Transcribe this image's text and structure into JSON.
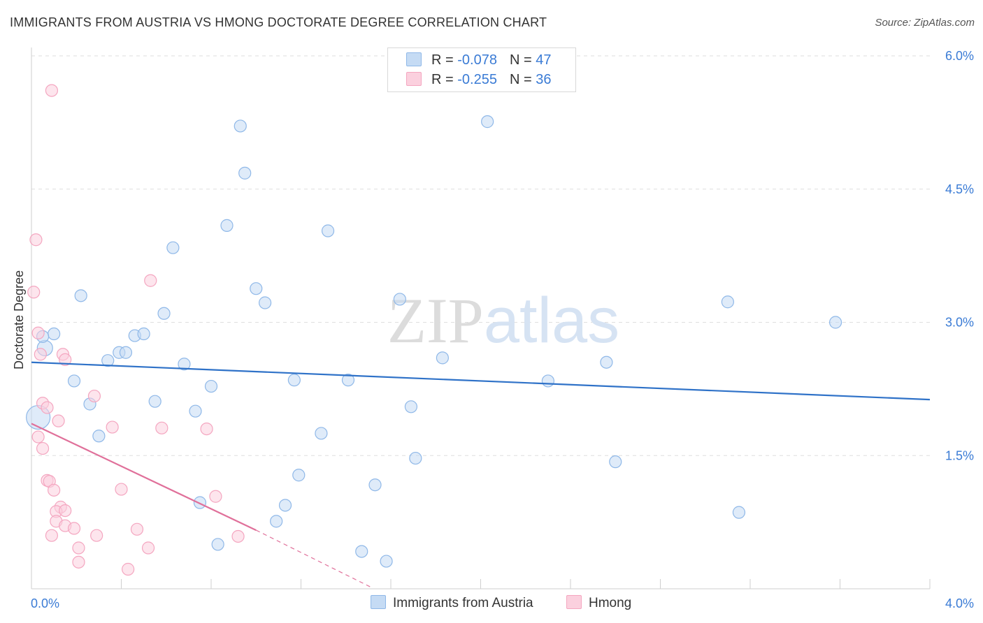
{
  "chart_data": {
    "type": "scatter",
    "title": "IMMIGRANTS FROM AUSTRIA VS HMONG DOCTORATE DEGREE CORRELATION CHART",
    "source": "Source: ZipAtlas.com",
    "ylabel": "Doctorate Degree",
    "xlabel": "",
    "xlim": [
      0,
      4.0
    ],
    "ylim": [
      0,
      6.0
    ],
    "x_tick_labels": {
      "left": "0.0%",
      "right": "4.0%"
    },
    "y_ticks": [
      {
        "value": 1.5,
        "label": "1.5%"
      },
      {
        "value": 3.0,
        "label": "3.0%"
      },
      {
        "value": 4.5,
        "label": "4.5%"
      },
      {
        "value": 6.0,
        "label": "6.0%"
      }
    ],
    "grid": true,
    "watermark": "ZIPatlas",
    "legend": [
      {
        "series": "Immigrants from Austria",
        "r_label": "R = ",
        "r_value": "-0.078",
        "n_label": "N = ",
        "n_value": "47"
      },
      {
        "series": "Hmong",
        "r_label": "R = ",
        "r_value": "-0.255",
        "n_label": "N = ",
        "n_value": "36"
      }
    ],
    "series": [
      {
        "name": "Immigrants from Austria",
        "color": "#8fb8e8",
        "line_color": "#2f72c8",
        "trend": {
          "x0": 0.0,
          "y0": 2.55,
          "x1": 4.0,
          "y1": 2.13
        },
        "points": [
          [
            0.03,
            1.93
          ],
          [
            0.06,
            2.71
          ],
          [
            0.1,
            2.87
          ],
          [
            0.19,
            2.34
          ],
          [
            0.22,
            3.3
          ],
          [
            0.26,
            2.08
          ],
          [
            0.3,
            1.72
          ],
          [
            0.34,
            2.57
          ],
          [
            0.39,
            2.66
          ],
          [
            0.42,
            2.66
          ],
          [
            0.46,
            2.85
          ],
          [
            0.5,
            2.87
          ],
          [
            0.55,
            2.11
          ],
          [
            0.59,
            3.1
          ],
          [
            0.63,
            3.84
          ],
          [
            0.68,
            2.53
          ],
          [
            0.73,
            2.0
          ],
          [
            0.75,
            0.97
          ],
          [
            0.8,
            2.28
          ],
          [
            0.83,
            0.5
          ],
          [
            0.87,
            4.09
          ],
          [
            0.93,
            5.21
          ],
          [
            0.95,
            4.68
          ],
          [
            1.0,
            3.38
          ],
          [
            1.04,
            3.22
          ],
          [
            1.09,
            0.76
          ],
          [
            1.13,
            0.94
          ],
          [
            1.17,
            2.35
          ],
          [
            1.19,
            1.28
          ],
          [
            1.29,
            1.75
          ],
          [
            1.32,
            4.03
          ],
          [
            1.41,
            2.35
          ],
          [
            1.47,
            0.42
          ],
          [
            1.53,
            1.17
          ],
          [
            1.58,
            0.31
          ],
          [
            1.64,
            3.26
          ],
          [
            1.69,
            2.05
          ],
          [
            1.71,
            1.47
          ],
          [
            1.83,
            2.6
          ],
          [
            2.03,
            5.26
          ],
          [
            2.3,
            2.34
          ],
          [
            2.56,
            2.55
          ],
          [
            2.6,
            1.43
          ],
          [
            3.1,
            3.23
          ],
          [
            3.15,
            0.86
          ],
          [
            3.58,
            3.0
          ],
          [
            0.05,
            2.84
          ]
        ]
      },
      {
        "name": "Hmong",
        "color": "#f4a6c0",
        "line_color": "#e0709a",
        "trend": {
          "x0": 0.0,
          "y0": 1.86,
          "x1": 1.0,
          "y1": 0.66
        },
        "trend_dashed": {
          "x0": 1.0,
          "y0": 0.66,
          "x1": 1.51,
          "y1": 0.02
        },
        "points": [
          [
            0.09,
            5.61
          ],
          [
            0.02,
            3.93
          ],
          [
            0.01,
            3.34
          ],
          [
            0.03,
            2.88
          ],
          [
            0.04,
            2.64
          ],
          [
            0.05,
            2.09
          ],
          [
            0.07,
            2.04
          ],
          [
            0.03,
            1.71
          ],
          [
            0.05,
            1.58
          ],
          [
            0.07,
            1.22
          ],
          [
            0.08,
            1.21
          ],
          [
            0.1,
            1.11
          ],
          [
            0.12,
            1.89
          ],
          [
            0.13,
            0.92
          ],
          [
            0.11,
            0.87
          ],
          [
            0.11,
            0.76
          ],
          [
            0.15,
            0.71
          ],
          [
            0.15,
            0.88
          ],
          [
            0.19,
            0.68
          ],
          [
            0.09,
            0.6
          ],
          [
            0.14,
            2.64
          ],
          [
            0.15,
            2.58
          ],
          [
            0.21,
            0.46
          ],
          [
            0.21,
            0.3
          ],
          [
            0.28,
            2.17
          ],
          [
            0.29,
            0.6
          ],
          [
            0.36,
            1.82
          ],
          [
            0.4,
            1.12
          ],
          [
            0.43,
            0.22
          ],
          [
            0.47,
            0.67
          ],
          [
            0.52,
            0.46
          ],
          [
            0.53,
            3.47
          ],
          [
            0.58,
            1.81
          ],
          [
            0.78,
            1.8
          ],
          [
            0.82,
            1.04
          ],
          [
            0.92,
            0.59
          ]
        ]
      }
    ]
  }
}
